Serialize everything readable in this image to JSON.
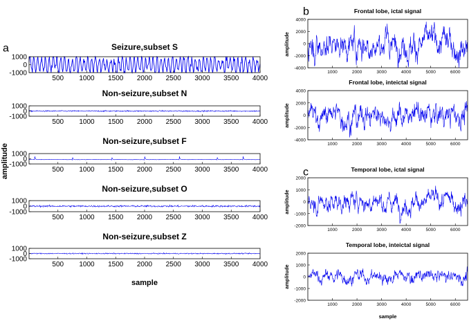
{
  "chart_data": [
    {
      "panel": "a",
      "type": "line",
      "ylabel": "amplitude",
      "xlabel": "sample",
      "xlim": [
        0,
        4000
      ],
      "ylim": [
        -1000,
        1000
      ],
      "xticks": [
        500,
        1000,
        1500,
        2000,
        2500,
        3000,
        3500,
        4000
      ],
      "yticks": [
        1000,
        0,
        -1000
      ],
      "subplots": [
        {
          "title": "Seizure,subset S",
          "series_color": "#0000ee",
          "typical_amplitude": 900,
          "clipped": true
        },
        {
          "title": "Non-seizure,subset N",
          "series_color": "#0000ee",
          "typical_amplitude": 60
        },
        {
          "title": "Non-seizure,subset F",
          "series_color": "#0000ee",
          "typical_amplitude": 120,
          "baseline": -150,
          "spikes_at": [
            100,
            750,
            1430,
            2000,
            2600,
            3250,
            3700
          ]
        },
        {
          "title": "Non-seizure,subset O",
          "series_color": "#0000ee",
          "typical_amplitude": 80
        },
        {
          "title": "Non-seizure,subset Z",
          "series_color": "#0000ee",
          "typical_amplitude": 50
        }
      ]
    },
    {
      "panel": "b",
      "type": "line",
      "ylabel": "amplitude",
      "xlim": [
        0,
        6500
      ],
      "ylim": [
        -4000,
        4000
      ],
      "xticks": [
        1000,
        2000,
        3000,
        4000,
        5000,
        6000
      ],
      "yticks": [
        4000,
        2000,
        0,
        -2000,
        -4000
      ],
      "subplots": [
        {
          "title": "Frontal lobe, ictal signal",
          "series_color": "#0000ee",
          "typical_amplitude": 1400
        },
        {
          "title": "Frontal lobe, inteictal signal",
          "series_color": "#0000ee",
          "typical_amplitude": 1200
        }
      ]
    },
    {
      "panel": "c",
      "type": "line",
      "ylabel": "amplitude",
      "xlabel": "sample",
      "xlim": [
        0,
        6500
      ],
      "ylim": [
        -2000,
        2000
      ],
      "xticks": [
        1000,
        2000,
        3000,
        4000,
        5000,
        6000
      ],
      "yticks": [
        2000,
        1000,
        0,
        -1000,
        -2000
      ],
      "subplots": [
        {
          "title": "Temporal lobe, ictal signal",
          "series_color": "#0000ee",
          "typical_amplitude": 500
        },
        {
          "title": "Temporal lobe, inteictal signal",
          "series_color": "#0000ee",
          "typical_amplitude": 350
        }
      ]
    }
  ],
  "panels": {
    "a": "a",
    "b": "b",
    "c": "c"
  }
}
